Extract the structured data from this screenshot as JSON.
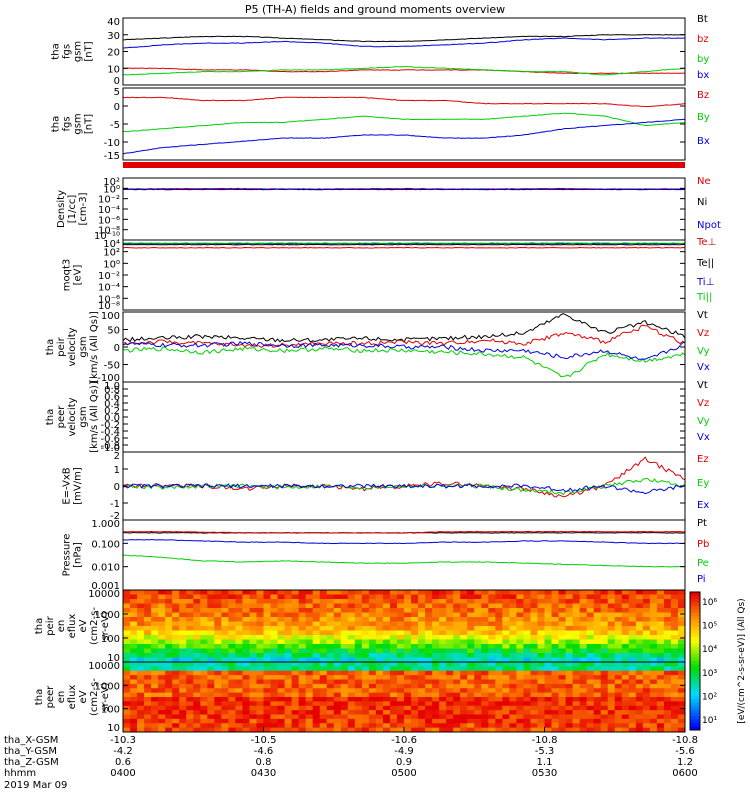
{
  "title": "P5 (TH-A) fields and ground moments overview",
  "colors": {
    "black": "#000000",
    "red": "#e00000",
    "green": "#00d000",
    "blue": "#0000e0",
    "white": "#ffffff"
  },
  "chart_data": {
    "type": "line",
    "x_tick_labels": [
      "0400",
      "0430",
      "0500",
      "0530",
      "0600"
    ],
    "footer": {
      "rows": [
        {
          "label": "tha_X-GSM",
          "values": [
            "-10.3",
            "-10.5",
            "-10.6",
            "-10.8",
            "-10.8"
          ]
        },
        {
          "label": "tha_Y-GSM",
          "values": [
            "-4.2",
            "-4.6",
            "-4.9",
            "-5.3",
            "-5.6"
          ]
        },
        {
          "label": "tha_Z-GSM",
          "values": [
            "0.6",
            "0.8",
            "0.9",
            "1.1",
            "1.2"
          ]
        },
        {
          "label": "hhmm",
          "values": [
            "0400",
            "0430",
            "0500",
            "0530",
            "0600"
          ]
        }
      ],
      "date": "2019 Mar 09"
    },
    "panels": [
      {
        "ylabel": [
          "tha",
          "fgs",
          "gsm",
          "[nT]"
        ],
        "yticks": [
          "40",
          "30",
          "20",
          "10",
          "0"
        ],
        "ylim": [
          0,
          40
        ],
        "series": [
          {
            "name": "Bt",
            "color": "black",
            "values": [
              27,
              28,
              29,
              29,
              28,
              27,
              26,
              26,
              27,
              28,
              29,
              29,
              30,
              30,
              30
            ]
          },
          {
            "name": "bz",
            "color": "red",
            "values": [
              10,
              10,
              9,
              9,
              8,
              8,
              9,
              9,
              9,
              9,
              8,
              7,
              7,
              7,
              7
            ]
          },
          {
            "name": "by",
            "color": "green",
            "values": [
              6,
              7,
              8,
              8,
              9,
              9,
              10,
              11,
              10,
              9,
              8,
              8,
              6,
              8,
              10
            ]
          },
          {
            "name": "bx",
            "color": "blue",
            "values": [
              22,
              24,
              25,
              25,
              26,
              25,
              23,
              23,
              24,
              25,
              27,
              28,
              27,
              28,
              28
            ]
          }
        ]
      },
      {
        "ylabel": [
          "tha",
          "fgs",
          "gsm",
          "[nT]"
        ],
        "yticks": [
          "5",
          "0",
          "-5",
          "-10",
          "-15"
        ],
        "ylim": [
          -17,
          6
        ],
        "series": [
          {
            "name": "Bz",
            "color": "red",
            "values": [
              3,
              3,
              2,
              2,
              3,
              3,
              3,
              2,
              2,
              1,
              1,
              1,
              1,
              0,
              1
            ]
          },
          {
            "name": "By",
            "color": "green",
            "values": [
              -8,
              -7,
              -6,
              -5,
              -5,
              -4,
              -3,
              -4,
              -4,
              -4,
              -3,
              -2,
              -3,
              -6,
              -5
            ]
          },
          {
            "name": "Bx",
            "color": "blue",
            "values": [
              -15,
              -13,
              -12,
              -11,
              -10,
              -10,
              -9,
              -9,
              -10,
              -10,
              -9,
              -7,
              -6,
              -5,
              -4
            ]
          }
        ]
      },
      {
        "ylabel": [
          "Density",
          "[1/cc]",
          "[cm-3]"
        ],
        "log": true,
        "yticks": [
          "10²",
          "10⁰",
          "10⁻²",
          "10⁻⁴",
          "10⁻⁶",
          "10⁻⁸",
          "10⁻¹⁰"
        ],
        "ylim": [
          -11,
          2.5
        ],
        "series": [
          {
            "name": "Ne",
            "color": "red",
            "values": [
              0.1,
              0.15,
              0.2,
              0.2,
              0.1,
              0.1,
              0.15,
              0.2,
              0.1,
              0.1,
              0.15,
              0.2,
              0.1,
              0.1,
              0.1
            ]
          },
          {
            "name": "Ni",
            "color": "black",
            "values": [
              0.05,
              0.05,
              0.05,
              0.05,
              0.05,
              0.05,
              0.05,
              0.05,
              0.05,
              0.05,
              0.05,
              0.05,
              0.05,
              0.05,
              0.05
            ]
          },
          {
            "name": "Npot",
            "color": "blue",
            "values": [
              0.0,
              0.0,
              0.0,
              0.0,
              0.0,
              0.0,
              0.0,
              0.0,
              0.0,
              0.0,
              0.0,
              0.0,
              0.0,
              0.0,
              0.0
            ]
          }
        ]
      },
      {
        "ylabel": [
          "moqt3",
          "[eV]"
        ],
        "log": true,
        "yticks": [
          "10⁴",
          "10²",
          "10⁰",
          "10⁻²",
          "10⁻⁴",
          "10⁻⁶",
          "10⁻⁸"
        ],
        "ylim": [
          -9,
          4.5
        ],
        "series": [
          {
            "name": "Te⊥",
            "color": "red",
            "values": [
              3.0,
              3.0,
              3.0,
              3.0,
              3.0,
              3.0,
              3.0,
              3.0,
              3.0,
              3.0,
              3.0,
              3.0,
              3.0,
              3.0,
              3.0
            ]
          },
          {
            "name": "Te||",
            "color": "black",
            "values": [
              3.6,
              3.6,
              3.6,
              3.6,
              3.6,
              3.6,
              3.6,
              3.6,
              3.6,
              3.6,
              3.6,
              3.6,
              3.6,
              3.6,
              3.6
            ]
          },
          {
            "name": "Ti⊥",
            "color": "blue",
            "values": [
              3.8,
              3.8,
              3.8,
              3.8,
              3.8,
              3.8,
              3.8,
              3.8,
              3.8,
              3.8,
              3.8,
              3.8,
              3.8,
              3.8,
              3.8
            ]
          },
          {
            "name": "Ti||",
            "color": "green",
            "values": [
              3.9,
              3.9,
              3.9,
              3.9,
              3.9,
              3.9,
              3.9,
              3.9,
              3.9,
              3.9,
              3.9,
              3.9,
              3.9,
              3.9,
              3.9
            ]
          }
        ]
      },
      {
        "ylabel": [
          "tha",
          "peir",
          "velocity",
          "gsm",
          "[km/s (All Qs)]"
        ],
        "yticks": [
          "100",
          "50",
          "0",
          "-50",
          "-100"
        ],
        "ylim": [
          -100,
          100
        ],
        "series": [
          {
            "name": "Vt",
            "color": "black",
            "values": [
              20,
              25,
              30,
              25,
              20,
              20,
              25,
              20,
              25,
              30,
              40,
              95,
              40,
              70,
              30
            ]
          },
          {
            "name": "Vz",
            "color": "red",
            "values": [
              10,
              15,
              10,
              5,
              5,
              10,
              10,
              15,
              10,
              20,
              10,
              40,
              15,
              60,
              10
            ]
          },
          {
            "name": "Vy",
            "color": "green",
            "values": [
              -10,
              -5,
              -15,
              -5,
              -10,
              -5,
              -10,
              -10,
              -15,
              -20,
              -30,
              -90,
              -20,
              -40,
              -20
            ]
          },
          {
            "name": "Vx",
            "color": "blue",
            "values": [
              10,
              5,
              5,
              10,
              5,
              5,
              5,
              0,
              0,
              -10,
              -10,
              -30,
              -10,
              -40,
              10
            ]
          }
        ]
      },
      {
        "ylabel": [
          "tha",
          "peer",
          "velocity",
          "gsm",
          "[km/s (All Qs)]"
        ],
        "yticks": [
          "1.0",
          "0.8",
          "0.6",
          "0.4",
          "0.2",
          "0.0",
          "-0.2",
          "-0.4",
          "-0.6",
          "-0.8",
          "-1.0"
        ],
        "ylim": [
          -1,
          1
        ],
        "series": [
          {
            "name": "Vt",
            "color": "black",
            "values": []
          },
          {
            "name": "Vz",
            "color": "red",
            "values": []
          },
          {
            "name": "Vy",
            "color": "green",
            "values": []
          },
          {
            "name": "Vx",
            "color": "blue",
            "values": []
          }
        ]
      },
      {
        "ylabel": [
          "E=-VxB",
          "[mV/m]"
        ],
        "yticks": [
          "2",
          "1",
          "0",
          "-1",
          "-2"
        ],
        "ylim": [
          -2.5,
          2.5
        ],
        "series": [
          {
            "name": "Ez",
            "color": "red",
            "values": [
              0,
              0.1,
              0,
              -0.2,
              0,
              0,
              -0.2,
              0,
              0.2,
              0,
              -0.2,
              -0.8,
              0,
              2,
              0.5
            ]
          },
          {
            "name": "Ey",
            "color": "green",
            "values": [
              0,
              -0.1,
              0,
              0,
              -0.1,
              0,
              -0.1,
              0,
              0,
              0,
              -0.3,
              -0.5,
              0,
              0.5,
              0
            ]
          },
          {
            "name": "Ex",
            "color": "blue",
            "values": [
              0,
              0,
              0,
              0,
              0,
              0,
              0,
              0,
              0,
              0,
              0,
              -0.3,
              0,
              -0.5,
              0
            ]
          }
        ]
      },
      {
        "ylabel": [
          "Pressure",
          "[nPa]"
        ],
        "log": true,
        "yticks": [
          "1.000",
          "0.100",
          "0.010",
          "0.001"
        ],
        "ylim": [
          -3,
          0
        ],
        "series": [
          {
            "name": "Pt",
            "color": "black",
            "values": [
              -0.55,
              -0.55,
              -0.55,
              -0.55,
              -0.55,
              -0.55,
              -0.55,
              -0.55,
              -0.55,
              -0.55,
              -0.55,
              -0.55,
              -0.55,
              -0.55,
              -0.55
            ]
          },
          {
            "name": "Pb",
            "color": "red",
            "values": [
              -0.5,
              -0.5,
              -0.52,
              -0.55,
              -0.55,
              -0.55,
              -0.55,
              -0.55,
              -0.5,
              -0.5,
              -0.5,
              -0.5,
              -0.5,
              -0.5,
              -0.5
            ]
          },
          {
            "name": "Pe",
            "color": "green",
            "values": [
              -1.5,
              -1.6,
              -1.75,
              -1.8,
              -1.75,
              -1.8,
              -1.85,
              -1.85,
              -1.8,
              -1.8,
              -1.85,
              -1.9,
              -1.95,
              -2.0,
              -2.0
            ]
          },
          {
            "name": "Pi",
            "color": "blue",
            "values": [
              -0.85,
              -0.85,
              -0.9,
              -0.95,
              -0.95,
              -1.0,
              -1.0,
              -1.0,
              -0.95,
              -0.95,
              -0.9,
              -0.9,
              -0.95,
              -1.0,
              -1.0
            ]
          }
        ]
      },
      {
        "kind": "spectrogram",
        "ylabel": [
          "tha",
          "peir",
          "en",
          "eflux",
          "eV",
          "(cm2-s-",
          "sr-eV)"
        ],
        "yticks": [
          "10000",
          "1000",
          "100",
          "10"
        ]
      },
      {
        "kind": "spectrogram",
        "ylabel": [
          "tha",
          "peer",
          "en",
          "eflux",
          "eV",
          "(cm2-s-",
          "sr-eV)"
        ],
        "yticks": [
          "10000",
          "1000",
          "100",
          "10"
        ]
      }
    ],
    "colorbar": {
      "ticks": [
        "10⁶",
        "10⁵",
        "10⁴",
        "10³",
        "10²",
        "10¹"
      ],
      "label": "[eV/(cm^2-s-sr-eV)] (All Qs)"
    }
  }
}
